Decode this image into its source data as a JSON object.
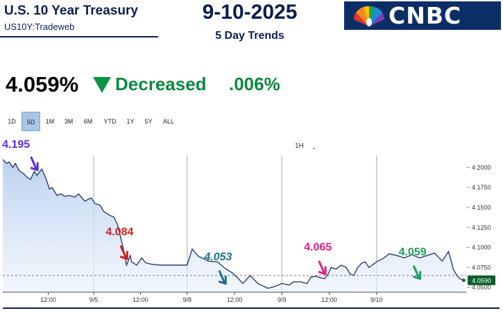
{
  "header": {
    "title": "U.S. 10 Year Treasury",
    "subtitle": "US10Y:Tradeweb",
    "date": "9-10-2025",
    "trend_label": "5 Day Trends",
    "logo_text": "CNBC"
  },
  "quote": {
    "price": "4.059%",
    "direction_icon": "triangle-down-icon",
    "change_direction": "Decreased",
    "change_amount": ".006%",
    "change_color": "#0b8a3f"
  },
  "range_buttons": [
    {
      "label": "1D",
      "active": false
    },
    {
      "label": "5D",
      "active": true
    },
    {
      "label": "1M",
      "active": false
    },
    {
      "label": "3M",
      "active": false
    },
    {
      "label": "6M",
      "active": false
    },
    {
      "label": "YTD",
      "active": false
    },
    {
      "label": "1Y",
      "active": false
    },
    {
      "label": "5Y",
      "active": false
    },
    {
      "label": "ALL",
      "active": false
    }
  ],
  "interval": {
    "label": "1H"
  },
  "chart_data": {
    "type": "area",
    "title": "",
    "xlabel": "",
    "ylabel": "",
    "x_ticks": [
      "12:00",
      "9/5",
      "12:00",
      "9/8",
      "12:00",
      "9/9",
      "12:00",
      "9/10"
    ],
    "y_ticks": [
      4.05,
      4.075,
      4.1,
      4.125,
      4.15,
      4.175,
      4.2
    ],
    "y_tick_labels": [
      "4.0500",
      "4.0750",
      "4.1000",
      "4.1250",
      "4.1500",
      "4.1750",
      "4.2000"
    ],
    "ylim": [
      4.045,
      4.215
    ],
    "xlim": [
      0,
      36.7
    ],
    "grid": "vertical-day-separators",
    "day_separators": [
      7.2,
      14.6,
      22.1,
      29.6
    ],
    "series": [
      {
        "x": [
          0,
          0.3,
          0.5,
          0.8,
          1.0,
          1.3,
          1.6,
          1.9,
          2.2,
          2.5,
          2.7,
          3.1,
          3.4,
          3.7,
          3.9,
          4.3,
          4.6,
          4.9,
          5.3,
          5.7,
          6.0,
          6.5,
          7.0,
          7.3,
          7.7,
          8.0,
          8.5,
          8.8,
          9.1,
          9.5,
          9.8,
          10.1,
          10.2,
          10.6,
          11.0,
          11.3,
          11.8,
          12.5,
          13.5,
          14.6,
          15.0,
          15.5,
          16.3,
          17.0,
          17.6,
          17.8,
          18.2,
          18.6,
          19.0,
          19.6,
          20.2,
          21.0,
          21.5,
          22.1,
          22.7,
          23.0,
          23.6,
          24.1,
          24.4,
          24.8,
          25.2,
          25.5,
          25.8,
          26.0,
          26.4,
          26.8,
          27.2,
          27.5,
          27.8,
          28.1,
          28.4,
          28.7,
          29.0,
          29.6,
          30.1,
          30.6,
          31.2,
          31.8,
          32.4,
          33.0,
          33.6,
          34.2,
          34.8,
          35.3,
          35.7,
          36.0,
          36.2,
          36.5
        ],
        "y": [
          4.21,
          4.205,
          4.207,
          4.2,
          4.205,
          4.196,
          4.193,
          4.188,
          4.185,
          4.195,
          4.19,
          4.198,
          4.187,
          4.173,
          4.175,
          4.165,
          4.167,
          4.164,
          4.165,
          4.163,
          4.167,
          4.158,
          4.162,
          4.155,
          4.153,
          4.145,
          4.14,
          4.138,
          4.128,
          4.102,
          4.078,
          4.09,
          4.082,
          4.078,
          4.087,
          4.081,
          4.079,
          4.078,
          4.078,
          4.078,
          4.098,
          4.089,
          4.083,
          4.082,
          4.074,
          4.072,
          4.068,
          4.062,
          4.055,
          4.065,
          4.055,
          4.049,
          4.051,
          4.055,
          4.053,
          4.057,
          4.057,
          4.055,
          4.063,
          4.064,
          4.062,
          4.061,
          4.068,
          4.075,
          4.073,
          4.078,
          4.075,
          4.067,
          4.065,
          4.075,
          4.08,
          4.082,
          4.075,
          4.082,
          4.086,
          4.092,
          4.09,
          4.087,
          4.091,
          4.087,
          4.09,
          4.093,
          4.083,
          4.095,
          4.072,
          4.064,
          4.061,
          4.059
        ]
      }
    ],
    "reference_line": {
      "y": 4.065
    },
    "last_value_label": "4.0590",
    "annotations": [
      {
        "text": "4.195",
        "color": "#5a2de0",
        "x": 2.7,
        "y": 4.195
      },
      {
        "text": "4.084",
        "color": "#d42020",
        "x": 9.8,
        "y": 4.084
      },
      {
        "text": "4.053",
        "color": "#1f6f8b",
        "x": 17.6,
        "y": 4.053
      },
      {
        "text": "4.065",
        "color": "#e0208a",
        "x": 25.5,
        "y": 4.065
      },
      {
        "text": "4.059",
        "color": "#1aa05a",
        "x": 33.0,
        "y": 4.059
      }
    ],
    "line_color": "#2c3e6b",
    "area_color": "#c9dcf2"
  }
}
